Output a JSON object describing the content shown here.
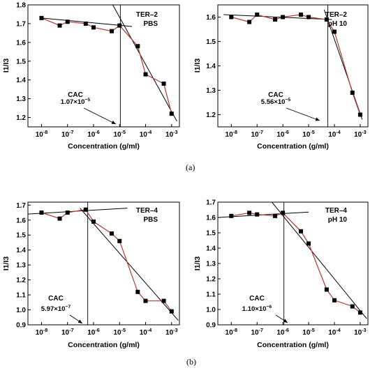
{
  "figure": {
    "panel_tags": [
      "(a)",
      "(b)"
    ]
  },
  "chart_data": [
    {
      "type": "line",
      "title": "",
      "xlabel": "Concentration (g/ml)",
      "ylabel": "I1/I3",
      "xscale": "log",
      "xlim": [
        3e-09,
        0.002
      ],
      "ylim": [
        1.15,
        1.8
      ],
      "xticks": [
        1e-08,
        1e-07,
        1e-06,
        1e-05,
        0.0001,
        0.001
      ],
      "xtick_labels": [
        [
          "10",
          "-8"
        ],
        [
          "10",
          "-7"
        ],
        [
          "10",
          "-6"
        ],
        [
          "10",
          "-5"
        ],
        [
          "10",
          "-4"
        ],
        [
          "10",
          "-3"
        ]
      ],
      "yticks": [
        1.2,
        1.3,
        1.4,
        1.5,
        1.6,
        1.7,
        1.8
      ],
      "ytick_labels": [
        "1.2",
        "1.3",
        "1.4",
        "1.5",
        "1.6",
        "1.7",
        "1.8"
      ],
      "sample_label": [
        "TER–2",
        "PBS"
      ],
      "series": [
        {
          "x": [
            1e-08,
            5e-08,
            1e-07,
            5e-07,
            1e-06,
            5e-06,
            1e-05,
            5e-05,
            0.0001,
            0.0005,
            0.001
          ],
          "y": [
            1.73,
            1.69,
            1.71,
            1.7,
            1.68,
            1.66,
            1.69,
            1.58,
            1.43,
            1.38,
            1.22
          ]
        }
      ],
      "fit_lines": [
        {
          "x": [
            1e-08,
            3e-05
          ],
          "y": [
            1.73,
            1.685
          ]
        },
        {
          "x": [
            5e-06,
            0.0016
          ],
          "y": [
            1.81,
            1.18
          ]
        }
      ],
      "cac_line_x": 1.07e-05,
      "cac_label": "CAC",
      "cac_value": [
        "1.07×10",
        "−5"
      ]
    },
    {
      "type": "line",
      "title": "",
      "xlabel": "Concentration (g/ml)",
      "ylabel": "I1/I3",
      "xscale": "log",
      "xlim": [
        3e-09,
        0.002
      ],
      "ylim": [
        1.15,
        1.65
      ],
      "xticks": [
        1e-08,
        1e-07,
        1e-06,
        1e-05,
        0.0001,
        0.001
      ],
      "xtick_labels": [
        [
          "10",
          "-8"
        ],
        [
          "10",
          "-7"
        ],
        [
          "10",
          "-6"
        ],
        [
          "10",
          "-5"
        ],
        [
          "10",
          "-4"
        ],
        [
          "10",
          "-3"
        ]
      ],
      "yticks": [
        1.2,
        1.3,
        1.4,
        1.5,
        1.6
      ],
      "ytick_labels": [
        "1.2",
        "1.3",
        "1.4",
        "1.5",
        "1.6"
      ],
      "sample_label": [
        "TER–2",
        "pH 10"
      ],
      "series": [
        {
          "x": [
            1e-08,
            5e-08,
            1e-07,
            5e-07,
            1e-06,
            5e-06,
            1e-05,
            5e-05,
            0.0001,
            0.0005,
            0.001
          ],
          "y": [
            1.6,
            1.58,
            1.61,
            1.59,
            1.6,
            1.61,
            1.6,
            1.59,
            1.54,
            1.29,
            1.2
          ]
        }
      ],
      "fit_lines": [
        {
          "x": [
            5e-09,
            8e-05
          ],
          "y": [
            1.61,
            1.59
          ]
        },
        {
          "x": [
            4e-05,
            0.0012
          ],
          "y": [
            1.63,
            1.18
          ]
        }
      ],
      "cac_line_x": 5.56e-05,
      "cac_label": "CAC",
      "cac_value": [
        "5.56×10",
        "−5"
      ]
    },
    {
      "type": "line",
      "title": "",
      "xlabel": "Concentration (g/ml)",
      "ylabel": "I1/I3",
      "xscale": "log",
      "xlim": [
        3e-09,
        0.002
      ],
      "ylim": [
        0.9,
        1.72
      ],
      "xticks": [
        1e-08,
        1e-07,
        1e-06,
        1e-05,
        0.0001,
        0.001
      ],
      "xtick_labels": [
        [
          "10",
          "-8"
        ],
        [
          "10",
          "-7"
        ],
        [
          "10",
          "-6"
        ],
        [
          "10",
          "-5"
        ],
        [
          "10",
          "-4"
        ],
        [
          "10",
          "-3"
        ]
      ],
      "yticks": [
        0.9,
        1.0,
        1.1,
        1.2,
        1.3,
        1.4,
        1.5,
        1.6,
        1.7
      ],
      "ytick_labels": [
        "0.9",
        "1.0",
        "1.1",
        "1.2",
        "1.3",
        "1.4",
        "1.5",
        "1.6",
        "1.7"
      ],
      "sample_label": [
        "TER–4",
        "PBS"
      ],
      "series": [
        {
          "x": [
            1e-08,
            5e-08,
            1e-07,
            5e-07,
            1e-06,
            5e-06,
            1e-05,
            5e-05,
            0.0001,
            0.0005,
            0.001
          ],
          "y": [
            1.65,
            1.61,
            1.65,
            1.67,
            1.59,
            1.51,
            1.46,
            1.12,
            1.06,
            1.06,
            0.99
          ]
        }
      ],
      "fit_lines": [
        {
          "x": [
            3e-09,
            2e-05
          ],
          "y": [
            1.64,
            1.68
          ]
        },
        {
          "x": [
            3e-07,
            0.0018
          ],
          "y": [
            1.68,
            0.93
          ]
        }
      ],
      "cac_line_x": 5.97e-07,
      "cac_label": "CAC",
      "cac_value": [
        "5.97×10",
        "−7"
      ]
    },
    {
      "type": "line",
      "title": "",
      "xlabel": "Concentration (g/ml)",
      "ylabel": "I1/I3",
      "xscale": "log",
      "xlim": [
        3e-09,
        0.002
      ],
      "ylim": [
        0.9,
        1.7
      ],
      "xticks": [
        1e-08,
        1e-07,
        1e-06,
        1e-05,
        0.0001,
        0.001
      ],
      "xtick_labels": [
        [
          "10",
          "-8"
        ],
        [
          "10",
          "-7"
        ],
        [
          "10",
          "-6"
        ],
        [
          "10",
          "-5"
        ],
        [
          "10",
          "-4"
        ],
        [
          "10",
          "-3"
        ]
      ],
      "yticks": [
        0.9,
        1.0,
        1.1,
        1.2,
        1.3,
        1.4,
        1.5,
        1.6,
        1.7
      ],
      "ytick_labels": [
        "0.9",
        "1.0",
        "1.1",
        "1.2",
        "1.3",
        "1.4",
        "1.5",
        "1.6",
        "1.7"
      ],
      "sample_label": [
        "TER–4",
        "pH 10"
      ],
      "series": [
        {
          "x": [
            1e-08,
            5e-08,
            1e-07,
            5e-07,
            1e-06,
            5e-06,
            1e-05,
            5e-05,
            0.0001,
            0.0005,
            0.001
          ],
          "y": [
            1.61,
            1.63,
            1.62,
            1.61,
            1.63,
            1.51,
            1.43,
            1.13,
            1.06,
            1.02,
            0.98
          ]
        }
      ],
      "fit_lines": [
        {
          "x": [
            3e-09,
            1e-05
          ],
          "y": [
            1.6,
            1.635
          ]
        },
        {
          "x": [
            3e-07,
            0.0018
          ],
          "y": [
            1.72,
            0.94
          ]
        }
      ],
      "cac_line_x": 1.1e-06,
      "cac_label": "CAC",
      "cac_value": [
        "1.10×10",
        "−6"
      ]
    }
  ]
}
